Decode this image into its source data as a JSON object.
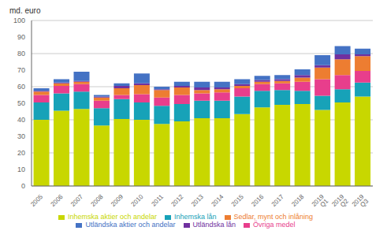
{
  "chart_data": {
    "type": "bar",
    "stacked": true,
    "ylabel": "md. euro",
    "categories": [
      "2005",
      "2006",
      "2007",
      "2008",
      "2009",
      "2010",
      "2011",
      "2012",
      "2013",
      "2014",
      "2015",
      "2016",
      "2017",
      "2018",
      "2019\nQ1",
      "2019\nQ2",
      "2019\nQ3"
    ],
    "series": [
      {
        "name": "Inhemska aktier och andelar",
        "color": "#c8d700",
        "values": [
          40.0,
          45.5,
          46.5,
          36.5,
          40.5,
          40.0,
          37.5,
          39.0,
          41.0,
          41.0,
          43.5,
          47.5,
          49.0,
          49.5,
          46.0,
          50.5,
          54.0
        ]
      },
      {
        "name": "Inhemska lån",
        "color": "#17a2b8",
        "values": [
          10.5,
          10.5,
          10.5,
          10.5,
          12.0,
          10.5,
          11.0,
          10.5,
          10.5,
          10.5,
          10.5,
          10.0,
          9.0,
          8.0,
          8.5,
          8.0,
          8.5
        ]
      },
      {
        "name": "Övriga medel",
        "color": "#e83e8c",
        "values": [
          4.5,
          4.5,
          4.5,
          4.5,
          2.5,
          5.0,
          5.0,
          5.5,
          4.5,
          5.0,
          5.0,
          4.0,
          4.0,
          5.5,
          10.0,
          8.5,
          7.0
        ]
      },
      {
        "name": "Sedlar, mynt och inlåning",
        "color": "#ed7d31",
        "values": [
          2.0,
          1.5,
          1.5,
          2.0,
          4.0,
          5.5,
          4.5,
          4.5,
          2.0,
          2.0,
          1.5,
          1.5,
          1.5,
          2.5,
          7.0,
          9.5,
          9.0
        ]
      },
      {
        "name": "Utländska lån",
        "color": "#7030a0",
        "values": [
          0.5,
          0.5,
          0.5,
          0.5,
          1.5,
          1.0,
          0.5,
          1.0,
          1.5,
          1.0,
          1.0,
          1.0,
          1.0,
          1.5,
          1.5,
          3.0,
          1.0
        ]
      },
      {
        "name": "Utländska aktier och andelar",
        "color": "#4472c4",
        "values": [
          1.5,
          2.0,
          5.5,
          1.0,
          1.5,
          6.0,
          1.5,
          2.5,
          3.5,
          3.5,
          3.0,
          2.5,
          2.5,
          3.5,
          6.0,
          5.0,
          3.5
        ]
      }
    ],
    "ylim": [
      0,
      100
    ],
    "yticks": [
      0,
      10,
      20,
      30,
      40,
      50,
      60,
      70,
      80,
      90,
      100
    ],
    "grid": true,
    "legend": "bottom"
  }
}
